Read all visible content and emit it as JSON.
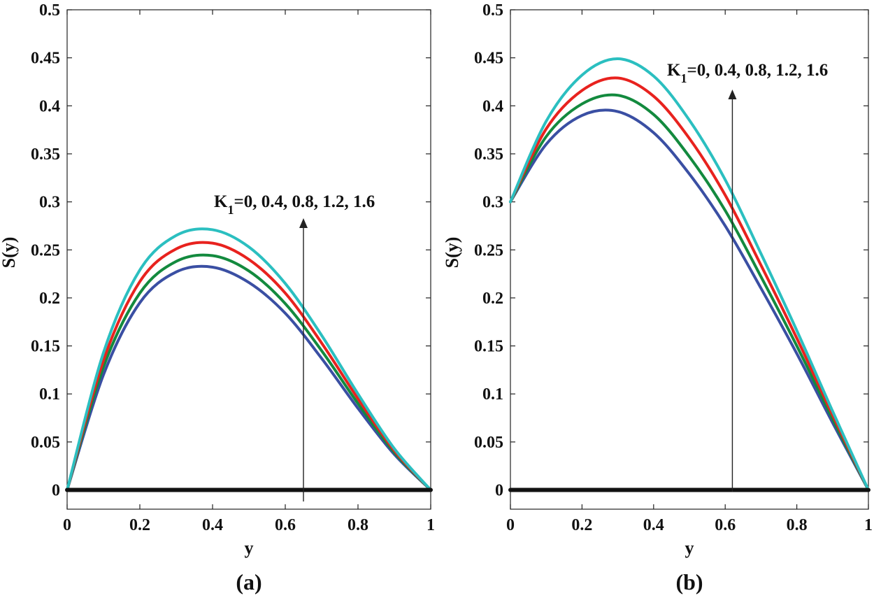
{
  "chart_data": [
    {
      "type": "line",
      "panel_label": "(a)",
      "xlabel": "y",
      "ylabel": "S(y)",
      "xlim": [
        0,
        1
      ],
      "ylim": [
        -0.02,
        0.5
      ],
      "xticks": [
        "0",
        "0.2",
        "0.4",
        "0.6",
        "0.8",
        "1"
      ],
      "yticks": [
        "0",
        "0.05",
        "0.1",
        "0.15",
        "0.2",
        "0.25",
        "0.3",
        "0.35",
        "0.4",
        "0.45",
        "0.5"
      ],
      "annotation": {
        "prefix": "K",
        "subscript": "1",
        "text": "=0, 0.4, 0.8, 1.2, 1.6",
        "arrow_x": 0.65,
        "arrow_from": -0.012,
        "arrow_to": 0.283
      },
      "x": [
        0,
        0.1,
        0.2,
        0.3,
        0.4,
        0.5,
        0.6,
        0.7,
        0.8,
        0.9,
        1
      ],
      "series": [
        {
          "name": "K1=0",
          "color": "#3a4fa3",
          "values": [
            0,
            0.12,
            0.195,
            0.227,
            0.232,
            0.216,
            0.184,
            0.137,
            0.085,
            0.037,
            0
          ]
        },
        {
          "name": "K1=0.4",
          "color": "#138a3e",
          "values": [
            0,
            0.128,
            0.205,
            0.238,
            0.244,
            0.228,
            0.194,
            0.145,
            0.09,
            0.039,
            0
          ]
        },
        {
          "name": "K1=0.8",
          "color": "#e8221e",
          "values": [
            0,
            0.135,
            0.217,
            0.251,
            0.257,
            0.24,
            0.205,
            0.153,
            0.095,
            0.041,
            0
          ]
        },
        {
          "name": "K1=1.2",
          "color": "#2bbfc0",
          "values": [
            0,
            0.143,
            0.229,
            0.265,
            0.271,
            0.253,
            0.215,
            0.161,
            0.1,
            0.043,
            0
          ]
        },
        {
          "name": "K1=1.6",
          "color": "#111111",
          "values": [
            0,
            0,
            0,
            0,
            0,
            0,
            0,
            0,
            0,
            0,
            0
          ]
        }
      ]
    },
    {
      "type": "line",
      "panel_label": "(b)",
      "xlabel": "y",
      "ylabel": "S(y)",
      "xlim": [
        0,
        1
      ],
      "ylim": [
        -0.02,
        0.5
      ],
      "xticks": [
        "0",
        "0.2",
        "0.4",
        "0.6",
        "0.8",
        "1"
      ],
      "yticks": [
        "0",
        "0.05",
        "0.1",
        "0.15",
        "0.2",
        "0.25",
        "0.3",
        "0.35",
        "0.4",
        "0.45",
        "0.5"
      ],
      "annotation": {
        "prefix": "K",
        "subscript": "1",
        "text": "=0, 0.4, 0.8, 1.2, 1.6",
        "arrow_x": 0.62,
        "arrow_from": -0.002,
        "arrow_to": 0.417
      },
      "x": [
        0,
        0.1,
        0.2,
        0.3,
        0.4,
        0.5,
        0.6,
        0.7,
        0.8,
        0.9,
        1
      ],
      "series": [
        {
          "name": "K1=0",
          "color": "#3a4fa3",
          "values": [
            0.3,
            0.36,
            0.39,
            0.394,
            0.372,
            0.329,
            0.275,
            0.21,
            0.142,
            0.07,
            0
          ]
        },
        {
          "name": "K1=0.4",
          "color": "#138a3e",
          "values": [
            0.3,
            0.368,
            0.402,
            0.411,
            0.391,
            0.347,
            0.291,
            0.222,
            0.15,
            0.074,
            0
          ]
        },
        {
          "name": "K1=0.8",
          "color": "#e8221e",
          "values": [
            0.3,
            0.376,
            0.416,
            0.429,
            0.41,
            0.366,
            0.307,
            0.234,
            0.158,
            0.078,
            0
          ]
        },
        {
          "name": "K1=1.2",
          "color": "#2bbfc0",
          "values": [
            0.3,
            0.384,
            0.432,
            0.449,
            0.431,
            0.385,
            0.323,
            0.246,
            0.166,
            0.082,
            0
          ]
        },
        {
          "name": "K1=1.6",
          "color": "#111111",
          "values": [
            0,
            0,
            0,
            0,
            0,
            0,
            0,
            0,
            0,
            0,
            0
          ]
        }
      ]
    }
  ]
}
